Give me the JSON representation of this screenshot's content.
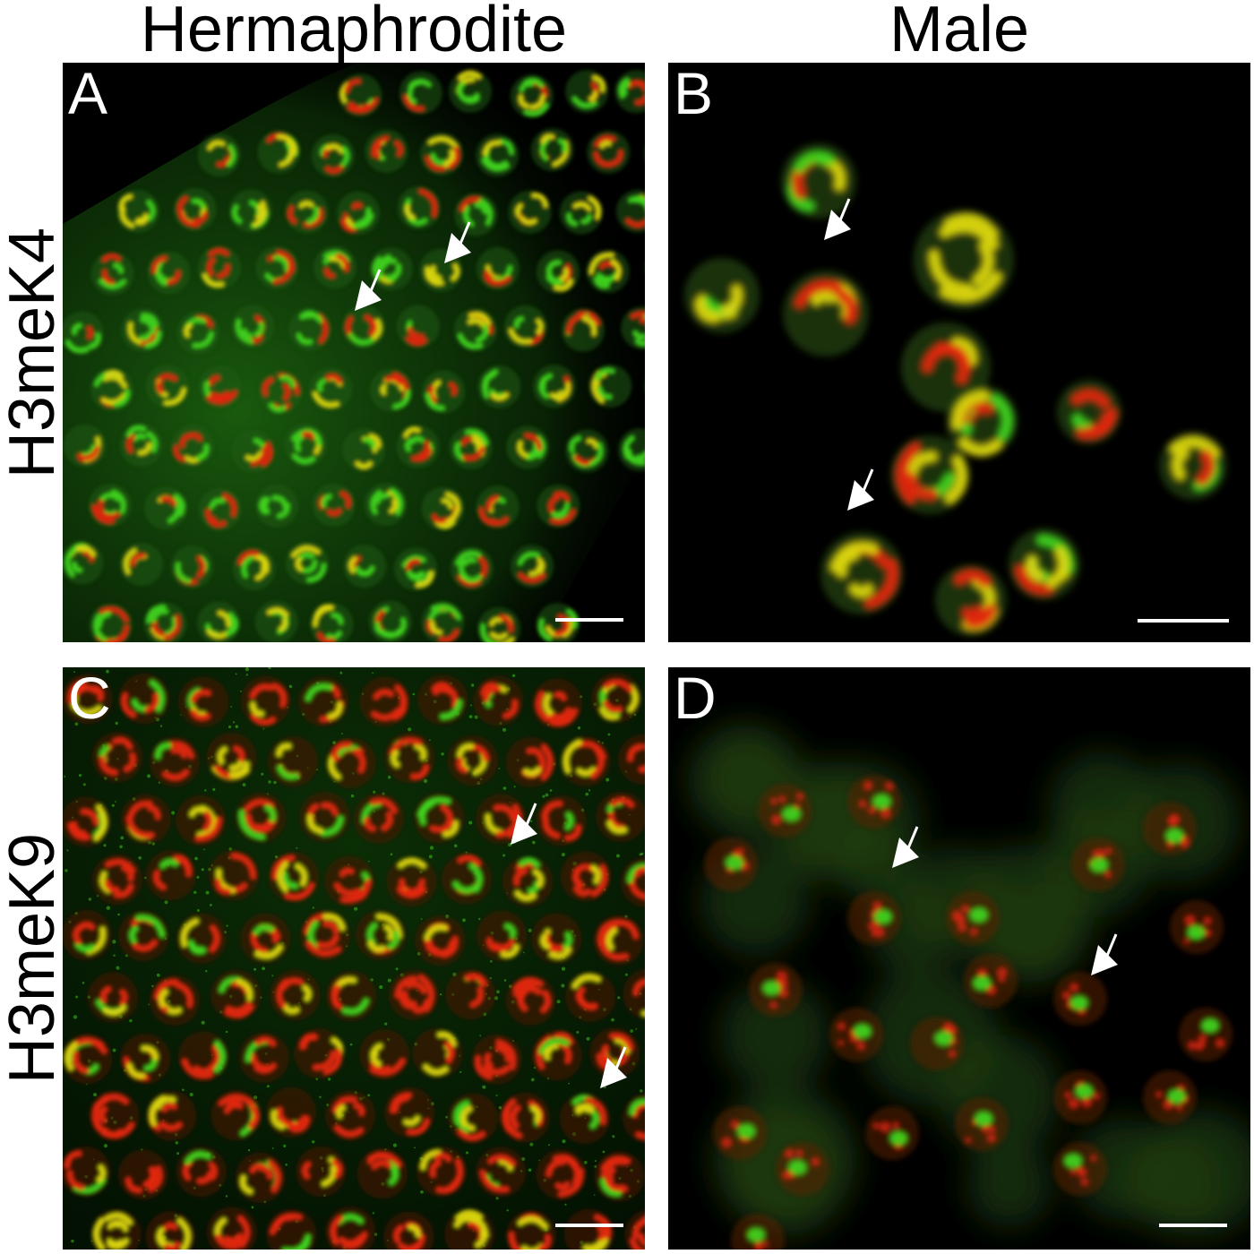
{
  "columns": {
    "left": "Hermaphrodite",
    "right": "Male"
  },
  "rows": {
    "top": "H3meK4",
    "bottom": "H3meK9"
  },
  "panels": [
    {
      "letter": "A"
    },
    {
      "letter": "B"
    },
    {
      "letter": "C"
    },
    {
      "letter": "D"
    }
  ],
  "colors": {
    "green_signal": "#3fd21a",
    "red_signal": "#e0260f",
    "yellow_overlap": "#d8d412",
    "background": "#000000",
    "annotation": "#ffffff"
  }
}
